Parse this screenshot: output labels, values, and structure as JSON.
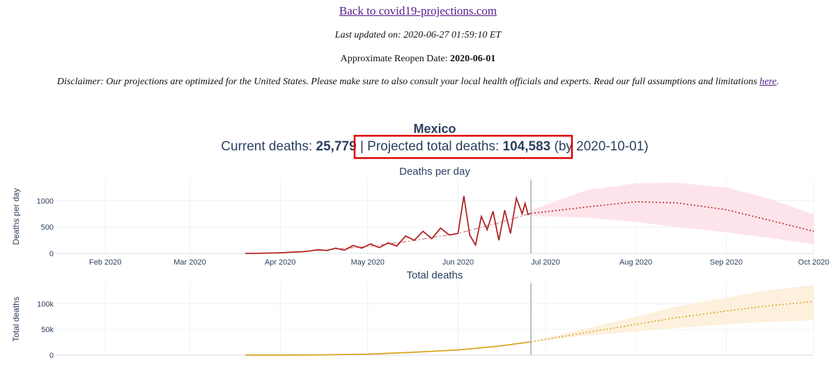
{
  "header": {
    "back_link": "Back to covid19-projections.com",
    "last_updated_label": "Last updated on:",
    "last_updated_value": "2020-06-27 01:59:10 ET",
    "reopen_label": "Approximate Reopen Date:",
    "reopen_value": "2020-06-01",
    "disclaimer_text": "Disclaimer: Our projections are optimized for the United States. Please make sure to also consult your local health officials and experts. Read our full assumptions and limitations",
    "disclaimer_link": "here",
    "disclaimer_end": "."
  },
  "summary": {
    "country": "Mexico",
    "current_label": "Current deaths:",
    "current_value": "25,779",
    "separator": "|",
    "projected_label": "Projected total deaths:",
    "projected_value": "104,583",
    "by_text": "(by 2020-10-01)",
    "highlight_color": "#e00000"
  },
  "colors": {
    "daily_line": "#b22222",
    "daily_band": "#fde4ea",
    "total_line": "#daa520",
    "total_band": "#fdf0dc",
    "axis_text": "#2a3f5f",
    "grid": "#ebf0f8",
    "divider": "#aaaaaa"
  },
  "chart_data": [
    {
      "type": "line",
      "title": "Deaths per day",
      "ylabel": "Deaths per day",
      "xlabel": "",
      "x_range": [
        "2020-01-15",
        "2020-10-01"
      ],
      "ylim": [
        0,
        1400
      ],
      "y_ticks": [
        0,
        500,
        1000
      ],
      "y_tick_labels": [
        "0",
        "500",
        "1000"
      ],
      "x_ticks": [
        "2020-02-01",
        "2020-03-01",
        "2020-04-01",
        "2020-05-01",
        "2020-06-01",
        "2020-07-01",
        "2020-08-01",
        "2020-09-01",
        "2020-10-01"
      ],
      "x_tick_labels": [
        "Feb 2020",
        "Mar 2020",
        "Apr 2020",
        "May 2020",
        "Jun 2020",
        "Jul 2020",
        "Aug 2020",
        "Sep 2020",
        "Oct 2020"
      ],
      "divider_date": "2020-06-26",
      "grid": true,
      "series": [
        {
          "style": "solid",
          "x": [
            "2020-03-20",
            "2020-03-25",
            "2020-03-30",
            "2020-04-02",
            "2020-04-05",
            "2020-04-08",
            "2020-04-11",
            "2020-04-14",
            "2020-04-17",
            "2020-04-20",
            "2020-04-23",
            "2020-04-26",
            "2020-04-29",
            "2020-05-02",
            "2020-05-05",
            "2020-05-08",
            "2020-05-11",
            "2020-05-14",
            "2020-05-17",
            "2020-05-20",
            "2020-05-23",
            "2020-05-26",
            "2020-05-29",
            "2020-06-01",
            "2020-06-03",
            "2020-06-05",
            "2020-06-07",
            "2020-06-09",
            "2020-06-11",
            "2020-06-13",
            "2020-06-15",
            "2020-06-17",
            "2020-06-19",
            "2020-06-21",
            "2020-06-23",
            "2020-06-24",
            "2020-06-25",
            "2020-06-26"
          ],
          "y": [
            0,
            3,
            8,
            15,
            25,
            30,
            45,
            70,
            55,
            100,
            60,
            150,
            100,
            180,
            110,
            200,
            140,
            330,
            250,
            420,
            280,
            480,
            350,
            380,
            1090,
            350,
            160,
            700,
            450,
            800,
            250,
            820,
            380,
            1050,
            750,
            950,
            740,
            760
          ]
        },
        {
          "style": "dashdot",
          "x": [
            "2020-03-20",
            "2020-04-01",
            "2020-04-15",
            "2020-05-01",
            "2020-05-15",
            "2020-06-01",
            "2020-06-15",
            "2020-06-26"
          ],
          "y": [
            0,
            15,
            60,
            130,
            230,
            380,
            580,
            760
          ]
        },
        {
          "style": "dotted",
          "x": [
            "2020-06-26",
            "2020-07-01",
            "2020-07-15",
            "2020-08-01",
            "2020-08-15",
            "2020-09-01",
            "2020-09-15",
            "2020-10-01"
          ],
          "y": [
            760,
            790,
            880,
            980,
            960,
            830,
            640,
            420
          ]
        }
      ],
      "band": {
        "x": [
          "2020-06-26",
          "2020-07-15",
          "2020-08-01",
          "2020-08-15",
          "2020-09-01",
          "2020-09-15",
          "2020-10-01"
        ],
        "lower": [
          710,
          680,
          600,
          500,
          400,
          300,
          180
        ],
        "upper": [
          820,
          1200,
          1330,
          1340,
          1250,
          1050,
          740
        ]
      }
    },
    {
      "type": "line",
      "title": "Total deaths",
      "ylabel": "Total deaths",
      "xlabel": "",
      "x_range": [
        "2020-01-15",
        "2020-10-01"
      ],
      "ylim": [
        0,
        140000
      ],
      "y_ticks": [
        0,
        50000,
        100000
      ],
      "y_tick_labels": [
        "0",
        "50k",
        "100k"
      ],
      "divider_date": "2020-06-26",
      "grid": true,
      "series": [
        {
          "style": "solid",
          "x": [
            "2020-03-20",
            "2020-04-01",
            "2020-04-15",
            "2020-05-01",
            "2020-05-15",
            "2020-06-01",
            "2020-06-15",
            "2020-06-26"
          ],
          "y": [
            0,
            50,
            400,
            1800,
            5000,
            10000,
            17500,
            25779
          ]
        },
        {
          "style": "dotted",
          "x": [
            "2020-06-26",
            "2020-07-15",
            "2020-08-01",
            "2020-08-15",
            "2020-09-01",
            "2020-09-15",
            "2020-10-01"
          ],
          "y": [
            25779,
            44000,
            60000,
            73000,
            86000,
            96000,
            104583
          ]
        }
      ],
      "band": {
        "x": [
          "2020-06-26",
          "2020-07-15",
          "2020-08-01",
          "2020-08-15",
          "2020-09-01",
          "2020-09-15",
          "2020-10-01"
        ],
        "lower": [
          25779,
          38000,
          46000,
          53000,
          60000,
          65000,
          68000
        ],
        "upper": [
          25779,
          52000,
          75000,
          95000,
          112000,
          126000,
          137000
        ]
      }
    }
  ]
}
